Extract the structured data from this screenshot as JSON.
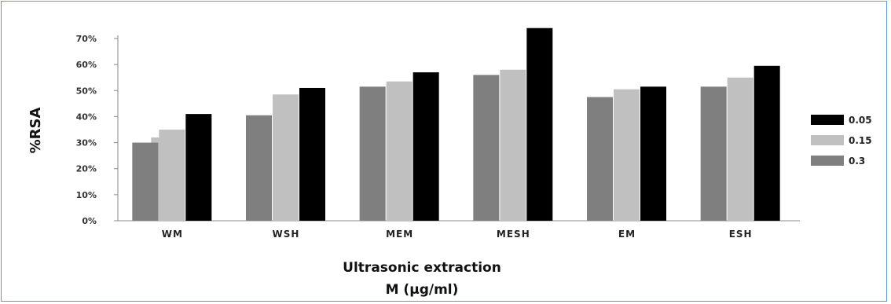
{
  "chart_data": {
    "type": "bar",
    "categories": [
      "WM",
      "WSH",
      "MEM",
      "MESH",
      "EM",
      "ESH"
    ],
    "series": [
      {
        "name": "0.3",
        "color": "#7f7f7f",
        "values": [
          30,
          40.5,
          51.5,
          56,
          47.5,
          51.5
        ]
      },
      {
        "name": "0.15",
        "color": "#c0c0c0",
        "values": [
          35,
          48.5,
          53.5,
          58,
          50.5,
          55
        ]
      },
      {
        "name": "0.05",
        "color": "#000000",
        "values": [
          41,
          51,
          57,
          74,
          51.5,
          59.5
        ]
      }
    ],
    "extra_bars": [
      {
        "category": "WM",
        "series": "0.15",
        "value": 32,
        "color": "#c0c0c0"
      }
    ],
    "legend_order": [
      "0.05",
      "0.15",
      "0.3"
    ],
    "legend_position": "right",
    "ylabel": "%RSA",
    "xlabel_lines": [
      "Ultrasonic extraction",
      "M (µg/ml)"
    ],
    "ylim": [
      0,
      70
    ],
    "yticks": [
      0,
      10,
      20,
      30,
      40,
      50,
      60,
      70
    ],
    "ytick_labels": [
      "0%",
      "10%",
      "20%",
      "30%",
      "40%",
      "50%",
      "60%",
      "70%"
    ],
    "grid": false
  }
}
